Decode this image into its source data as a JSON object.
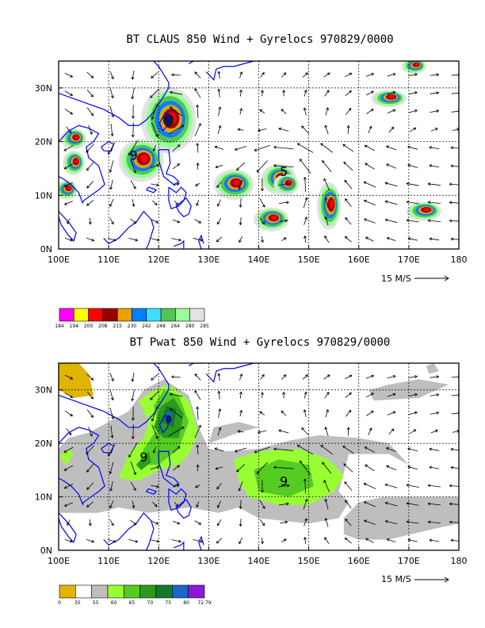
{
  "chart_data": [
    {
      "type": "heatmap",
      "title": "BT CLAUS 850 Wind + Gyrelocs 970829/0000",
      "x_ticks": [
        "100E",
        "110E",
        "120E",
        "130E",
        "140E",
        "150E",
        "160E",
        "170E",
        "180"
      ],
      "y_ticks": [
        "0N",
        "10N",
        "20N",
        "30N"
      ],
      "xlim": [
        100,
        180
      ],
      "ylim": [
        0,
        35
      ],
      "grid": true,
      "vector_scale_label": "15 M/S",
      "colorbar_labels": [
        "184",
        "194",
        "200",
        "208",
        "215",
        "230",
        "242",
        "248",
        "264",
        "280",
        "285"
      ],
      "colorbar_colors": [
        "#ff00ff",
        "#ffff00",
        "#ff0000",
        "#990000",
        "#e6a200",
        "#0080ff",
        "#3fe0ff",
        "#55c455",
        "#99ff99",
        "#e2e2e2"
      ],
      "gyre_markers": [
        {
          "label": "9",
          "lon": 115,
          "lat": 17.5
        },
        {
          "label": "5",
          "lon": 145,
          "lat": 14.5
        }
      ],
      "cold_cloud_centers": [
        {
          "lon": 122,
          "lat": 24
        },
        {
          "lon": 116.5,
          "lat": 16.5
        },
        {
          "lon": 103,
          "lat": 20.5
        },
        {
          "lon": 103,
          "lat": 16
        },
        {
          "lon": 101.5,
          "lat": 11
        },
        {
          "lon": 135,
          "lat": 12
        },
        {
          "lon": 144,
          "lat": 13
        },
        {
          "lon": 145.5,
          "lat": 12
        },
        {
          "lon": 142.5,
          "lat": 5.5
        },
        {
          "lon": 154,
          "lat": 8
        },
        {
          "lon": 173,
          "lat": 7
        },
        {
          "lon": 166,
          "lat": 28
        },
        {
          "lon": 171,
          "lat": 34
        }
      ]
    },
    {
      "type": "heatmap",
      "title": "BT Pwat 850 Wind + Gyrelocs 970829/0000",
      "x_ticks": [
        "100E",
        "110E",
        "120E",
        "130E",
        "140E",
        "150E",
        "160E",
        "170E",
        "180"
      ],
      "y_ticks": [
        "0N",
        "10N",
        "20N",
        "30N"
      ],
      "xlim": [
        100,
        180
      ],
      "ylim": [
        0,
        35
      ],
      "grid": true,
      "vector_scale_label": "15 M/S",
      "colorbar_labels": [
        "0",
        "35",
        "55",
        "60",
        "65",
        "70",
        "75",
        "80",
        "72.79"
      ],
      "colorbar_colors": [
        "#e0b400",
        "#ffffff",
        "#bebebe",
        "#99ff33",
        "#55cc22",
        "#2a9a1e",
        "#137a2a",
        "#1a66cc",
        "#8a1ad6"
      ],
      "gyre_markers": [
        {
          "label": "9",
          "lon": 117,
          "lat": 17.5
        },
        {
          "label": "9",
          "lon": 145,
          "lat": 13
        }
      ],
      "moist_centers": [
        {
          "lon": 122,
          "lat": 24.5
        },
        {
          "lon": 117,
          "lat": 17
        },
        {
          "lon": 145,
          "lat": 13
        }
      ]
    }
  ]
}
